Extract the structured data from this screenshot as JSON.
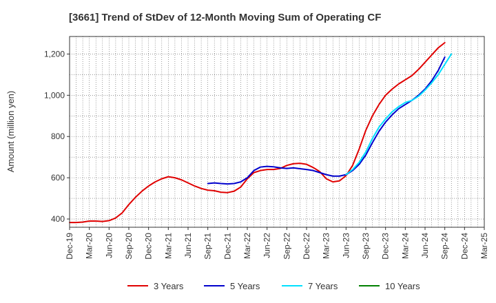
{
  "chart_data": {
    "type": "line",
    "title": "[3661]  Trend of StDev of 12-Month Moving Sum of Operating CF",
    "xlabel": "",
    "ylabel": "Amount (million yen)",
    "ylim": [
      360,
      1285
    ],
    "yticks": [
      400,
      600,
      800,
      1000,
      1200
    ],
    "ytick_labels": [
      "400",
      "600",
      "800",
      "1,000",
      "1,200"
    ],
    "x_categories": [
      "Dec-19",
      "Mar-20",
      "Jun-20",
      "Sep-20",
      "Dec-20",
      "Mar-21",
      "Jun-21",
      "Sep-21",
      "Dec-21",
      "Mar-22",
      "Jun-22",
      "Sep-22",
      "Dec-22",
      "Mar-23",
      "Jun-23",
      "Sep-23",
      "Dec-23",
      "Mar-24",
      "Jun-24",
      "Sep-24",
      "Dec-24",
      "Mar-25"
    ],
    "grid": true,
    "legend_position": "bottom",
    "series": [
      {
        "name": "3 Years",
        "color": "#e00000",
        "start_index": 0,
        "values": [
          383,
          383,
          385,
          390,
          390,
          388,
          392,
          405,
          430,
          470,
          505,
          535,
          560,
          580,
          595,
          605,
          600,
          590,
          575,
          560,
          548,
          540,
          537,
          530,
          528,
          535,
          555,
          595,
          625,
          635,
          640,
          640,
          645,
          660,
          668,
          670,
          665,
          650,
          630,
          595,
          580,
          585,
          610,
          660,
          740,
          830,
          900,
          955,
          1000,
          1030,
          1055,
          1075,
          1095,
          1125,
          1160,
          1195,
          1230,
          1255
        ]
      },
      {
        "name": "5 Years",
        "color": "#0000cc",
        "start_index": 21,
        "values": [
          572,
          575,
          572,
          570,
          572,
          580,
          600,
          635,
          652,
          655,
          653,
          648,
          645,
          648,
          644,
          640,
          635,
          625,
          615,
          608,
          608,
          615,
          635,
          665,
          710,
          770,
          825,
          870,
          905,
          935,
          955,
          975,
          1000,
          1030,
          1070,
          1120,
          1185
        ]
      },
      {
        "name": "7 Years",
        "color": "#00e0ff",
        "start_index": 42,
        "values": [
          615,
          640,
          675,
          725,
          790,
          845,
          885,
          920,
          945,
          965,
          975,
          995,
          1025,
          1060,
          1100,
          1150,
          1200
        ]
      },
      {
        "name": "10 Years",
        "color": "#008000",
        "start_index": 58,
        "values": []
      }
    ]
  }
}
